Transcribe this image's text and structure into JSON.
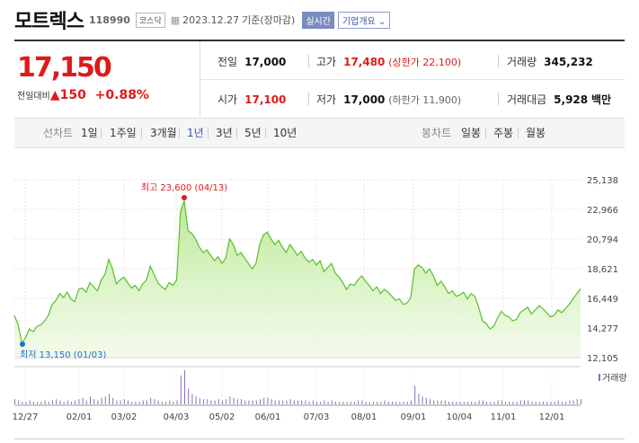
{
  "stock": {
    "name": "모트렉스",
    "code": "118990",
    "market": "코스닥",
    "date": "2023.12.27",
    "basis": "기준(장마감)",
    "realtime": "실시간",
    "company_info": "기업개요"
  },
  "price": {
    "current": "17,150",
    "change_label": "전일대비",
    "change_amount": "150",
    "change_pct": "+0.88%"
  },
  "stats": {
    "prev_close_label": "전일",
    "prev_close": "17,000",
    "high_label": "고가",
    "high": "17,480",
    "upper_limit": "(상한가 22,100)",
    "volume_label": "거래량",
    "volume": "345,232",
    "open_label": "시가",
    "open": "17,100",
    "low_label": "저가",
    "low": "17,000",
    "lower_limit": "(하한가 11,900)",
    "amount_label": "거래대금",
    "amount": "5,928",
    "amount_unit": "백만"
  },
  "tabs": {
    "line_label": "선차트",
    "periods": [
      "1일",
      "1주일",
      "3개월",
      "1년",
      "3년",
      "5년",
      "10년"
    ],
    "active_period": "1년",
    "candle_label": "봉차트",
    "candles": [
      "일봉",
      "주봉",
      "월봉"
    ]
  },
  "colors": {
    "red": "#e01a1a",
    "blue": "#1f6fd1",
    "line": "#59bf2b",
    "accent": "#3b55a7"
  },
  "chart_data": {
    "type": "area",
    "y_ticks": [
      "25,138",
      "22,966",
      "20,794",
      "18,621",
      "16,449",
      "14,277",
      "12,105"
    ],
    "y_tick_values": [
      25138,
      22966,
      20794,
      18621,
      16449,
      14277,
      12105
    ],
    "ylim": [
      12105,
      25138
    ],
    "x_ticks": [
      "12/27",
      "02/01",
      "03/02",
      "04/03",
      "05/02",
      "06/01",
      "07/03",
      "08/01",
      "09/01",
      "10/04",
      "11/01",
      "12/01"
    ],
    "high_annotation": "최고 23,600 (04/13)",
    "low_annotation": "최저 13,150 (01/03)",
    "volume_label": "거래량",
    "values": [
      15200,
      14500,
      13150,
      13600,
      14200,
      14000,
      14400,
      14500,
      14800,
      15200,
      16000,
      16300,
      16800,
      16500,
      16900,
      16400,
      16200,
      17100,
      17200,
      16900,
      17600,
      17300,
      17000,
      17800,
      18200,
      19300,
      18600,
      17500,
      17800,
      18000,
      17600,
      17200,
      17400,
      17000,
      17500,
      17800,
      18800,
      18200,
      17600,
      17300,
      17100,
      17600,
      17400,
      17800,
      22800,
      23600,
      21400,
      21200,
      20800,
      20200,
      19800,
      20000,
      19600,
      19200,
      19500,
      19000,
      19400,
      20800,
      20400,
      19600,
      19800,
      19400,
      19000,
      18600,
      19000,
      20400,
      21100,
      21300,
      20800,
      20400,
      20700,
      20200,
      19800,
      20400,
      20000,
      19600,
      19900,
      19400,
      19100,
      19300,
      18900,
      19200,
      18400,
      18700,
      19000,
      18300,
      18000,
      17600,
      17100,
      17500,
      17400,
      17800,
      18100,
      17700,
      17400,
      17000,
      17300,
      16800,
      17100,
      16900,
      16600,
      16300,
      16400,
      16000,
      16100,
      16500,
      18600,
      18900,
      18700,
      18300,
      18600,
      18100,
      17400,
      17700,
      17300,
      16800,
      17000,
      16600,
      16700,
      16900,
      16400,
      16800,
      16600,
      15800,
      14800,
      14600,
      14200,
      14400,
      15000,
      15500,
      15200,
      15100,
      14800,
      14900,
      15400,
      15600,
      15800,
      15300,
      15600,
      15900,
      15700,
      15400,
      15100,
      15200,
      15600,
      15400,
      15700,
      16000,
      16400,
      16800,
      17150
    ],
    "volume": [
      4,
      3,
      2,
      2,
      3,
      2,
      2,
      2,
      3,
      2,
      3,
      4,
      3,
      2,
      3,
      2,
      3,
      4,
      5,
      3,
      6,
      4,
      3,
      5,
      6,
      8,
      5,
      3,
      3,
      4,
      3,
      2,
      2,
      2,
      3,
      3,
      5,
      4,
      3,
      2,
      2,
      3,
      2,
      3,
      22,
      26,
      12,
      8,
      6,
      5,
      4,
      4,
      3,
      3,
      4,
      3,
      4,
      6,
      5,
      4,
      4,
      3,
      3,
      3,
      3,
      4,
      5,
      5,
      4,
      3,
      3,
      3,
      3,
      4,
      3,
      3,
      3,
      3,
      2,
      3,
      2,
      2,
      3,
      2,
      3,
      2,
      2,
      2,
      2,
      2,
      2,
      3,
      3,
      2,
      2,
      2,
      2,
      2,
      3,
      2,
      2,
      2,
      2,
      2,
      2,
      3,
      14,
      8,
      6,
      5,
      4,
      3,
      3,
      3,
      3,
      2,
      2,
      2,
      2,
      2,
      2,
      2,
      2,
      3,
      3,
      2,
      2,
      2,
      3,
      3,
      2,
      2,
      2,
      2,
      3,
      3,
      3,
      2,
      2,
      2,
      2,
      2,
      2,
      2,
      3,
      2,
      2,
      3,
      3,
      4,
      4
    ]
  }
}
